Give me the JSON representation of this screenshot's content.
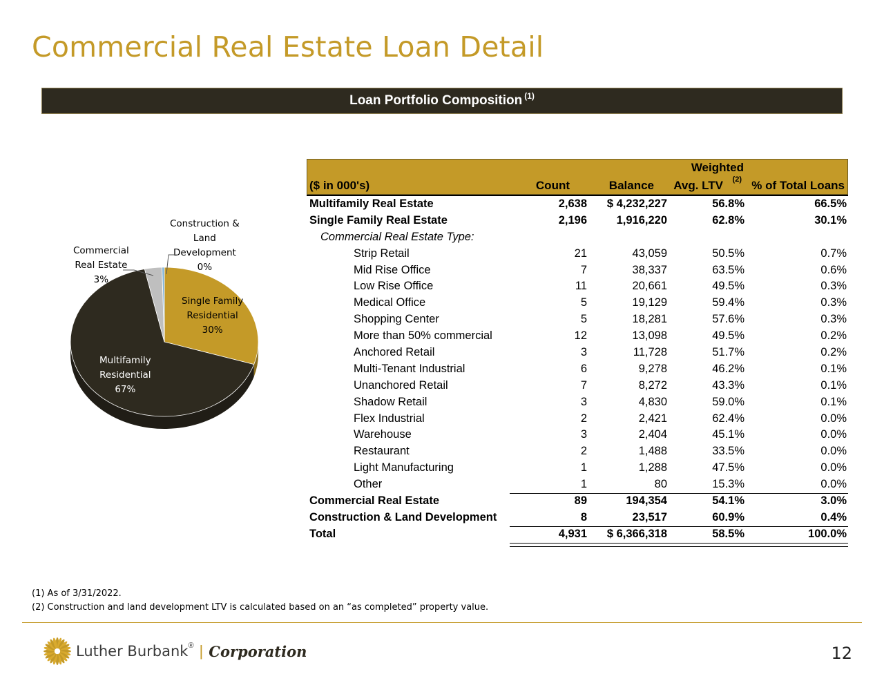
{
  "title": "Commercial Real Estate Loan Detail",
  "banner": {
    "label": "Loan Portfolio Composition",
    "sup": "(1)"
  },
  "pie": {
    "labels": {
      "construction": [
        "Construction &",
        "Land",
        "Development",
        "0%"
      ],
      "commercial": [
        "Commercial",
        "Real Estate",
        "3%"
      ],
      "single_family": [
        "Single Family",
        "Residential",
        "30%"
      ],
      "multifamily": [
        "Multifamily",
        "Residential",
        "67%"
      ]
    },
    "colors": {
      "multifamily": "#2e2a1f",
      "single_family": "#c49a28",
      "commercial": "#bfbfbf",
      "construction": "#7fb2d8"
    }
  },
  "chart_data": {
    "type": "pie",
    "categories": [
      "Multifamily Residential",
      "Single Family Residential",
      "Commercial Real Estate",
      "Construction & Land Development"
    ],
    "values": [
      67,
      30,
      3,
      0
    ]
  },
  "table": {
    "header": {
      "label": "($ in 000's)",
      "count": "Count",
      "balance": "Balance",
      "ltv_line1": "Weighted",
      "ltv_line2": "Avg. LTV",
      "ltv_sup": "(2)",
      "pct": "% of Total Loans"
    },
    "rows": [
      {
        "label": "Multifamily Real Estate",
        "count": "2,638",
        "balance": "$ 4,232,227",
        "ltv": "56.8%",
        "pct": "66.5%"
      },
      {
        "label": "Single Family Real Estate",
        "count": "2,196",
        "balance": "1,916,220",
        "ltv": "62.8%",
        "pct": "30.1%"
      }
    ],
    "subheader": "Commercial Real Estate Type:",
    "subrows": [
      {
        "label": "Strip Retail",
        "count": "21",
        "balance": "43,059",
        "ltv": "50.5%",
        "pct": "0.7%"
      },
      {
        "label": "Mid Rise Office",
        "count": "7",
        "balance": "38,337",
        "ltv": "63.5%",
        "pct": "0.6%"
      },
      {
        "label": "Low Rise Office",
        "count": "11",
        "balance": "20,661",
        "ltv": "49.5%",
        "pct": "0.3%"
      },
      {
        "label": "Medical Office",
        "count": "5",
        "balance": "19,129",
        "ltv": "59.4%",
        "pct": "0.3%"
      },
      {
        "label": "Shopping Center",
        "count": "5",
        "balance": "18,281",
        "ltv": "57.6%",
        "pct": "0.3%"
      },
      {
        "label": "More than 50% commercial",
        "count": "12",
        "balance": "13,098",
        "ltv": "49.5%",
        "pct": "0.2%"
      },
      {
        "label": "Anchored Retail",
        "count": "3",
        "balance": "11,728",
        "ltv": "51.7%",
        "pct": "0.2%"
      },
      {
        "label": "Multi-Tenant Industrial",
        "count": "6",
        "balance": "9,278",
        "ltv": "46.2%",
        "pct": "0.1%"
      },
      {
        "label": "Unanchored Retail",
        "count": "7",
        "balance": "8,272",
        "ltv": "43.3%",
        "pct": "0.1%"
      },
      {
        "label": "Shadow Retail",
        "count": "3",
        "balance": "4,830",
        "ltv": "59.0%",
        "pct": "0.1%"
      },
      {
        "label": "Flex Industrial",
        "count": "2",
        "balance": "2,421",
        "ltv": "62.4%",
        "pct": "0.0%"
      },
      {
        "label": "Warehouse",
        "count": "3",
        "balance": "2,404",
        "ltv": "45.1%",
        "pct": "0.0%"
      },
      {
        "label": "Restaurant",
        "count": "2",
        "balance": "1,488",
        "ltv": "33.5%",
        "pct": "0.0%"
      },
      {
        "label": "Light Manufacturing",
        "count": "1",
        "balance": "1,288",
        "ltv": "47.5%",
        "pct": "0.0%"
      },
      {
        "label": "Other",
        "count": "1",
        "balance": "80",
        "ltv": "15.3%",
        "pct": "0.0%"
      }
    ],
    "totals": [
      {
        "label": "Commercial Real Estate",
        "count": "89",
        "balance": "194,354",
        "ltv": "54.1%",
        "pct": "3.0%"
      },
      {
        "label": "Construction & Land Development",
        "count": "8",
        "balance": "23,517",
        "ltv": "60.9%",
        "pct": "0.4%"
      },
      {
        "label": "Total",
        "count": "4,931",
        "balance": "$ 6,366,318",
        "ltv": "58.5%",
        "pct": "100.0%"
      }
    ]
  },
  "footnotes": [
    "(1) As of 3/31/2022.",
    "(2) Construction and land development LTV is calculated based on an “as completed” property value."
  ],
  "logo": {
    "name": "Luther Burbank",
    "reg": "®",
    "sep": "|",
    "corp": "Corporation"
  },
  "page_number": "12"
}
